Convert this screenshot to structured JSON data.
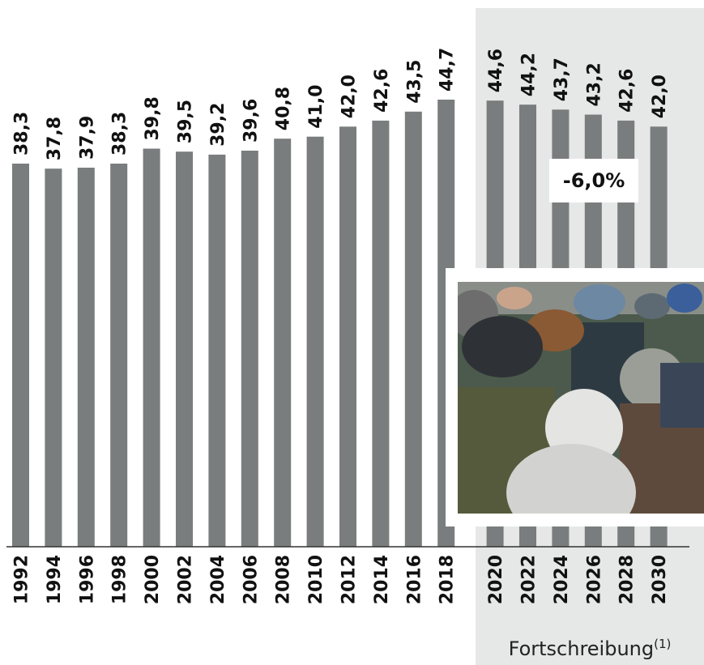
{
  "chart_data": {
    "type": "bar",
    "categories": [
      "1992",
      "1994",
      "1996",
      "1998",
      "2000",
      "2002",
      "2004",
      "2006",
      "2008",
      "2010",
      "2012",
      "2014",
      "2016",
      "2018",
      "2020",
      "2022",
      "2024",
      "2026",
      "2028",
      "2030"
    ],
    "values": [
      38.3,
      37.8,
      37.9,
      38.3,
      39.8,
      39.5,
      39.2,
      39.6,
      40.8,
      41.0,
      42.0,
      42.6,
      43.5,
      44.7,
      44.6,
      44.2,
      43.7,
      43.2,
      42.6,
      42.0
    ],
    "value_labels": [
      "38,3",
      "37,8",
      "37,9",
      "38,3",
      "39,8",
      "39,5",
      "39,2",
      "39,6",
      "40,8",
      "41,0",
      "42,0",
      "42,6",
      "43,5",
      "44,7",
      "44,6",
      "44,2",
      "43,7",
      "43,2",
      "42,6",
      "42,0"
    ],
    "forecast_start_index": 14,
    "ylim": [
      0,
      44.7
    ],
    "grid": false,
    "bar_color": "#7a7d7d",
    "forecast_band_color": "#e6e7e7",
    "annotation": "-6,0%",
    "forecast_caption": "Fortschreibung",
    "forecast_caption_footnote": "(1)"
  },
  "photo": {
    "icon": "crowd-of-elderly-people-photo"
  }
}
